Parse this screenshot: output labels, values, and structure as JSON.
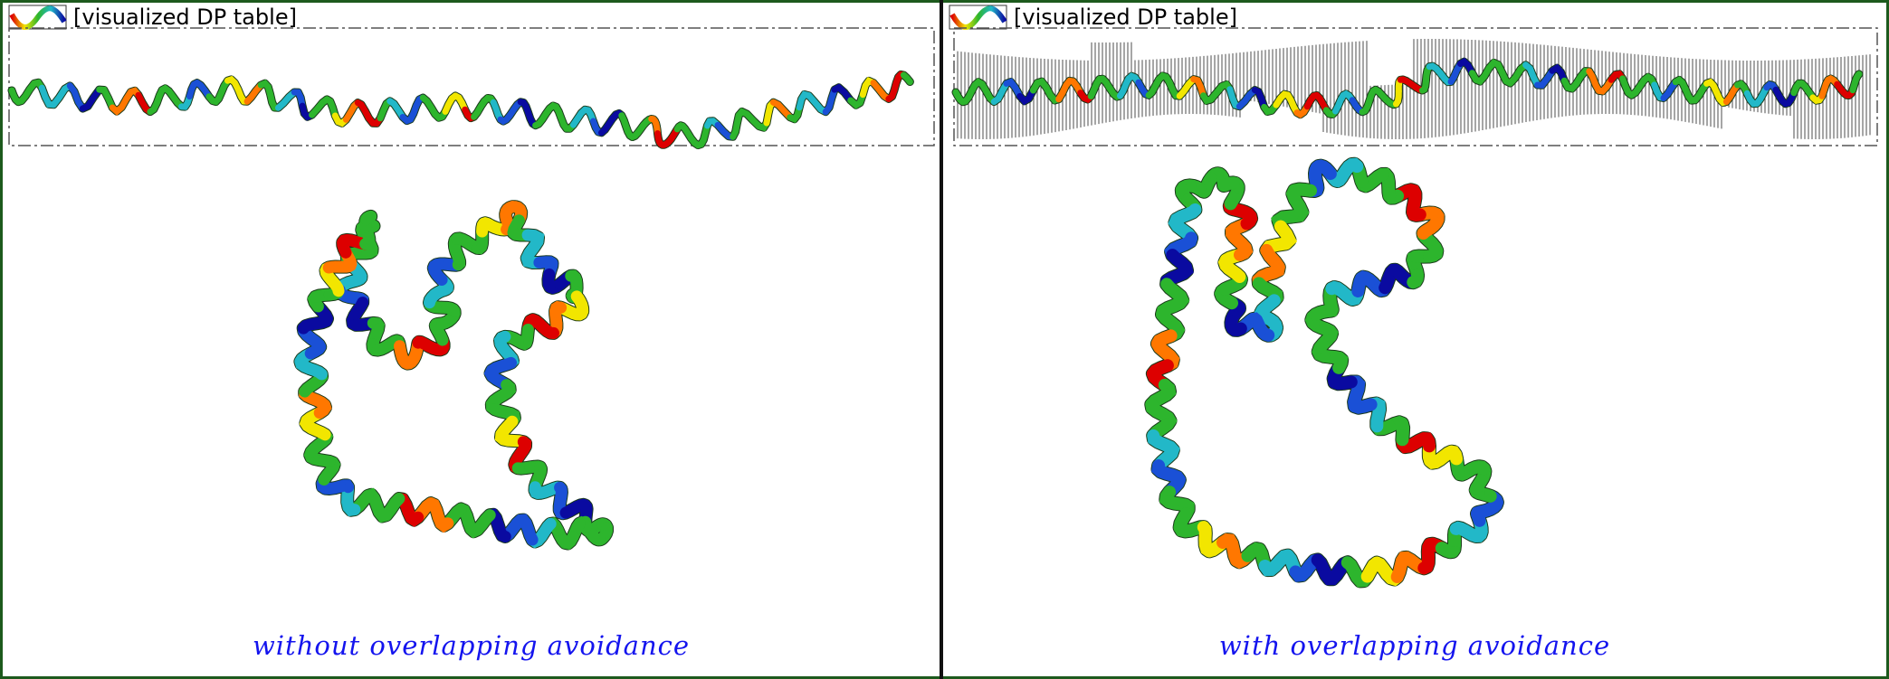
{
  "panels": {
    "left": {
      "legend_label": "[visualized DP table]",
      "caption": "without overlapping avoidance"
    },
    "right": {
      "legend_label": "[visualized DP table]",
      "caption": "with overlapping avoidance"
    }
  },
  "colors": {
    "frame": "#1d5a1d",
    "divider": "#111111",
    "caption": "#1414ee",
    "ribbon_palette": [
      "#dd0000",
      "#ff7700",
      "#f2e600",
      "#2db52d",
      "#22b8c8",
      "#1a50d6",
      "#0a0aa0"
    ],
    "dp_table_lines": "#4d4d4d",
    "box_border": "#555555"
  },
  "icons": {
    "legend": "rainbow-ribbon-icon"
  }
}
